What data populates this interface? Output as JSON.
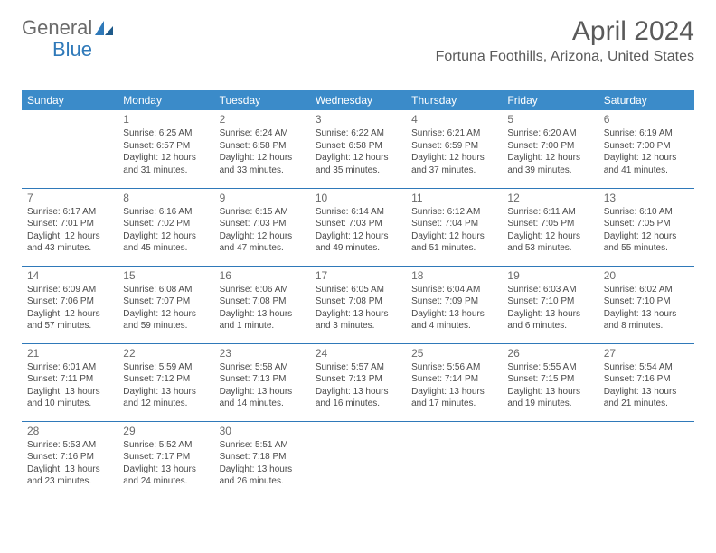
{
  "logo": {
    "text1": "General",
    "text2": "Blue"
  },
  "colors": {
    "header_bg": "#3b8bc9",
    "header_text": "#ffffff",
    "row_border": "#2f79b9",
    "body_text": "#4a4a4a",
    "logo_gray": "#6a6a6a",
    "logo_blue": "#2f79b9"
  },
  "title": "April 2024",
  "location": "Fortuna Foothills, Arizona, United States",
  "dow": [
    "Sunday",
    "Monday",
    "Tuesday",
    "Wednesday",
    "Thursday",
    "Friday",
    "Saturday"
  ],
  "weeks": [
    [
      null,
      {
        "n": "1",
        "sr": "Sunrise: 6:25 AM",
        "ss": "Sunset: 6:57 PM",
        "d1": "Daylight: 12 hours",
        "d2": "and 31 minutes."
      },
      {
        "n": "2",
        "sr": "Sunrise: 6:24 AM",
        "ss": "Sunset: 6:58 PM",
        "d1": "Daylight: 12 hours",
        "d2": "and 33 minutes."
      },
      {
        "n": "3",
        "sr": "Sunrise: 6:22 AM",
        "ss": "Sunset: 6:58 PM",
        "d1": "Daylight: 12 hours",
        "d2": "and 35 minutes."
      },
      {
        "n": "4",
        "sr": "Sunrise: 6:21 AM",
        "ss": "Sunset: 6:59 PM",
        "d1": "Daylight: 12 hours",
        "d2": "and 37 minutes."
      },
      {
        "n": "5",
        "sr": "Sunrise: 6:20 AM",
        "ss": "Sunset: 7:00 PM",
        "d1": "Daylight: 12 hours",
        "d2": "and 39 minutes."
      },
      {
        "n": "6",
        "sr": "Sunrise: 6:19 AM",
        "ss": "Sunset: 7:00 PM",
        "d1": "Daylight: 12 hours",
        "d2": "and 41 minutes."
      }
    ],
    [
      {
        "n": "7",
        "sr": "Sunrise: 6:17 AM",
        "ss": "Sunset: 7:01 PM",
        "d1": "Daylight: 12 hours",
        "d2": "and 43 minutes."
      },
      {
        "n": "8",
        "sr": "Sunrise: 6:16 AM",
        "ss": "Sunset: 7:02 PM",
        "d1": "Daylight: 12 hours",
        "d2": "and 45 minutes."
      },
      {
        "n": "9",
        "sr": "Sunrise: 6:15 AM",
        "ss": "Sunset: 7:03 PM",
        "d1": "Daylight: 12 hours",
        "d2": "and 47 minutes."
      },
      {
        "n": "10",
        "sr": "Sunrise: 6:14 AM",
        "ss": "Sunset: 7:03 PM",
        "d1": "Daylight: 12 hours",
        "d2": "and 49 minutes."
      },
      {
        "n": "11",
        "sr": "Sunrise: 6:12 AM",
        "ss": "Sunset: 7:04 PM",
        "d1": "Daylight: 12 hours",
        "d2": "and 51 minutes."
      },
      {
        "n": "12",
        "sr": "Sunrise: 6:11 AM",
        "ss": "Sunset: 7:05 PM",
        "d1": "Daylight: 12 hours",
        "d2": "and 53 minutes."
      },
      {
        "n": "13",
        "sr": "Sunrise: 6:10 AM",
        "ss": "Sunset: 7:05 PM",
        "d1": "Daylight: 12 hours",
        "d2": "and 55 minutes."
      }
    ],
    [
      {
        "n": "14",
        "sr": "Sunrise: 6:09 AM",
        "ss": "Sunset: 7:06 PM",
        "d1": "Daylight: 12 hours",
        "d2": "and 57 minutes."
      },
      {
        "n": "15",
        "sr": "Sunrise: 6:08 AM",
        "ss": "Sunset: 7:07 PM",
        "d1": "Daylight: 12 hours",
        "d2": "and 59 minutes."
      },
      {
        "n": "16",
        "sr": "Sunrise: 6:06 AM",
        "ss": "Sunset: 7:08 PM",
        "d1": "Daylight: 13 hours",
        "d2": "and 1 minute."
      },
      {
        "n": "17",
        "sr": "Sunrise: 6:05 AM",
        "ss": "Sunset: 7:08 PM",
        "d1": "Daylight: 13 hours",
        "d2": "and 3 minutes."
      },
      {
        "n": "18",
        "sr": "Sunrise: 6:04 AM",
        "ss": "Sunset: 7:09 PM",
        "d1": "Daylight: 13 hours",
        "d2": "and 4 minutes."
      },
      {
        "n": "19",
        "sr": "Sunrise: 6:03 AM",
        "ss": "Sunset: 7:10 PM",
        "d1": "Daylight: 13 hours",
        "d2": "and 6 minutes."
      },
      {
        "n": "20",
        "sr": "Sunrise: 6:02 AM",
        "ss": "Sunset: 7:10 PM",
        "d1": "Daylight: 13 hours",
        "d2": "and 8 minutes."
      }
    ],
    [
      {
        "n": "21",
        "sr": "Sunrise: 6:01 AM",
        "ss": "Sunset: 7:11 PM",
        "d1": "Daylight: 13 hours",
        "d2": "and 10 minutes."
      },
      {
        "n": "22",
        "sr": "Sunrise: 5:59 AM",
        "ss": "Sunset: 7:12 PM",
        "d1": "Daylight: 13 hours",
        "d2": "and 12 minutes."
      },
      {
        "n": "23",
        "sr": "Sunrise: 5:58 AM",
        "ss": "Sunset: 7:13 PM",
        "d1": "Daylight: 13 hours",
        "d2": "and 14 minutes."
      },
      {
        "n": "24",
        "sr": "Sunrise: 5:57 AM",
        "ss": "Sunset: 7:13 PM",
        "d1": "Daylight: 13 hours",
        "d2": "and 16 minutes."
      },
      {
        "n": "25",
        "sr": "Sunrise: 5:56 AM",
        "ss": "Sunset: 7:14 PM",
        "d1": "Daylight: 13 hours",
        "d2": "and 17 minutes."
      },
      {
        "n": "26",
        "sr": "Sunrise: 5:55 AM",
        "ss": "Sunset: 7:15 PM",
        "d1": "Daylight: 13 hours",
        "d2": "and 19 minutes."
      },
      {
        "n": "27",
        "sr": "Sunrise: 5:54 AM",
        "ss": "Sunset: 7:16 PM",
        "d1": "Daylight: 13 hours",
        "d2": "and 21 minutes."
      }
    ],
    [
      {
        "n": "28",
        "sr": "Sunrise: 5:53 AM",
        "ss": "Sunset: 7:16 PM",
        "d1": "Daylight: 13 hours",
        "d2": "and 23 minutes."
      },
      {
        "n": "29",
        "sr": "Sunrise: 5:52 AM",
        "ss": "Sunset: 7:17 PM",
        "d1": "Daylight: 13 hours",
        "d2": "and 24 minutes."
      },
      {
        "n": "30",
        "sr": "Sunrise: 5:51 AM",
        "ss": "Sunset: 7:18 PM",
        "d1": "Daylight: 13 hours",
        "d2": "and 26 minutes."
      },
      null,
      null,
      null,
      null
    ]
  ]
}
